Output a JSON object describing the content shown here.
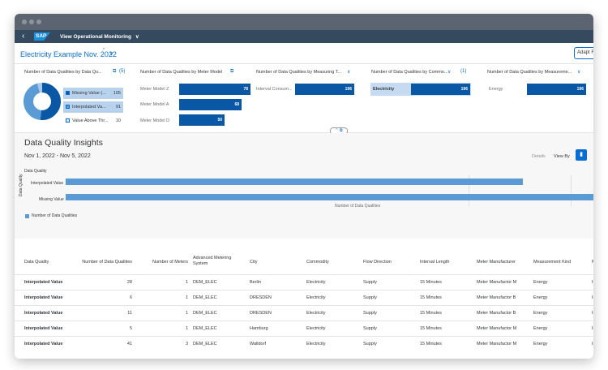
{
  "shell": {
    "back_icon": "back-icon",
    "logo": "SAP",
    "title": "View Operational Monitoring",
    "title_chevron": "∨"
  },
  "header": {
    "variant_name": "Electricity Example Nov. 2022",
    "variant_modified_mark": "*",
    "variant_chevron": "∨",
    "adapt_button": "Adapt F"
  },
  "filter_cards": {
    "data_quality": {
      "title": "Number of Data Qualities by Data Qu...",
      "selected_count": "(5)",
      "items": [
        {
          "label": "Missing Value (...",
          "value": "105"
        },
        {
          "label": "Interpolated Va...",
          "value": "91"
        },
        {
          "label": "Value Above Thr...",
          "value": "10"
        }
      ]
    },
    "meter_model": {
      "title": "Number of Data Qualities by Meter Model",
      "rows": [
        {
          "label": "Meter Model Z",
          "value": 78
        },
        {
          "label": "Meter Model A",
          "value": 68
        },
        {
          "label": "Meter Model D",
          "value": 50
        }
      ]
    },
    "measuring": {
      "title": "Number of Data Qualities by Measuring T...",
      "chevron": "∨",
      "rows": [
        {
          "label": "Interval Consum...",
          "value": 196
        }
      ]
    },
    "commodity": {
      "title": "Number of Data Qualities by Commo...",
      "chevron": "∨",
      "selected_count": "(1)",
      "rows": [
        {
          "label": "Electricity",
          "value": 196
        }
      ]
    },
    "measurement_kind": {
      "title": "Number of Data Qualities by Measureme...",
      "chevron": "∨",
      "rows": [
        {
          "label": "Energy",
          "value": 196
        }
      ]
    }
  },
  "insights": {
    "title": "Data Quality Insights",
    "date_range": "Nov 1, 2022 - Nov 5, 2022",
    "details_label": "Details",
    "view_by_label": "View By",
    "chart_dimension_label": "Data Quality"
  },
  "chart_data": {
    "type": "bar",
    "orientation": "horizontal",
    "title": "",
    "categories": [
      "Interpolated Value",
      "Missing Value"
    ],
    "series": [
      {
        "name": "Number of Data Qualities",
        "values": [
          91,
          105
        ]
      }
    ],
    "xlabel": "Number of Data Qualities",
    "ylabel": "Data Quality",
    "xlim": [
      0,
      105
    ],
    "legend": "bottom-left",
    "color": "#5b9bd5"
  },
  "table": {
    "columns": [
      "Data Quality",
      "Number of Data Qualities",
      "Number of Meters",
      "Advanced Metering System",
      "City",
      "Commodity",
      "Flow Direction",
      "Interval Length",
      "Meter Manufacturer",
      "Measurement Kind",
      "M"
    ],
    "rows": [
      [
        "Interpolated Value",
        "28",
        "1",
        "DEM_ELEC",
        "Berlin",
        "Electricity",
        "Supply",
        "15 Minutes",
        "Meter Manufactor M",
        "Energy",
        "In"
      ],
      [
        "Interpolated Value",
        "6",
        "1",
        "DEM_ELEC",
        "DRESDEN",
        "Electricity",
        "Supply",
        "15 Minutes",
        "Meter Manufactor B",
        "Energy",
        "In"
      ],
      [
        "Interpolated Value",
        "11",
        "1",
        "DEM_ELEC",
        "DRESDEN",
        "Electricity",
        "Supply",
        "15 Minutes",
        "Meter Manufactor B",
        "Energy",
        "In"
      ],
      [
        "Interpolated Value",
        "5",
        "1",
        "DEM_ELEC",
        "Hamburg",
        "Electricity",
        "Supply",
        "15 Minutes",
        "Meter Manufactor M",
        "Energy",
        "In"
      ],
      [
        "Interpolated Value",
        "41",
        "3",
        "DEM_ELEC",
        "Walldorf",
        "Electricity",
        "Supply",
        "15 Minutes",
        "Meter Manufactor M",
        "Energy",
        "In"
      ]
    ]
  },
  "colors": {
    "shell": "#354a5f",
    "accent": "#0a6ed1",
    "bar_dark": "#0a57a6",
    "bar_light": "#5b9bd5"
  }
}
